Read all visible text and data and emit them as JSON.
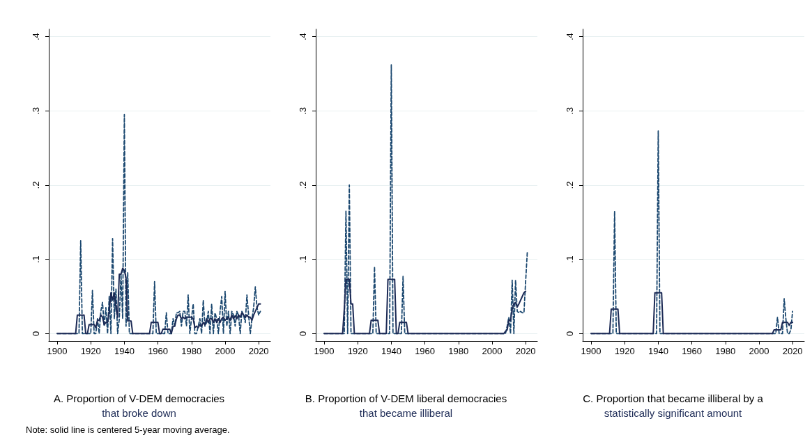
{
  "chart_data": [
    {
      "type": "line",
      "title": "A. Proportion of V-DEM democracies",
      "subtitle": "that broke down",
      "x": [
        1900,
        1901,
        1902,
        1903,
        1904,
        1905,
        1906,
        1907,
        1908,
        1909,
        1910,
        1911,
        1912,
        1913,
        1914,
        1915,
        1916,
        1917,
        1918,
        1919,
        1920,
        1921,
        1922,
        1923,
        1924,
        1925,
        1926,
        1927,
        1928,
        1929,
        1930,
        1931,
        1932,
        1933,
        1934,
        1935,
        1936,
        1937,
        1938,
        1939,
        1940,
        1941,
        1942,
        1943,
        1944,
        1945,
        1946,
        1947,
        1948,
        1949,
        1950,
        1951,
        1952,
        1953,
        1954,
        1955,
        1956,
        1957,
        1958,
        1959,
        1960,
        1961,
        1962,
        1963,
        1964,
        1965,
        1966,
        1967,
        1968,
        1969,
        1970,
        1971,
        1972,
        1973,
        1974,
        1975,
        1976,
        1977,
        1978,
        1979,
        1980,
        1981,
        1982,
        1983,
        1984,
        1985,
        1986,
        1987,
        1988,
        1989,
        1990,
        1991,
        1992,
        1993,
        1994,
        1995,
        1996,
        1997,
        1998,
        1999,
        2000,
        2001,
        2002,
        2003,
        2004,
        2005,
        2006,
        2007,
        2008,
        2009,
        2010,
        2011,
        2012,
        2013,
        2014,
        2015,
        2016,
        2017,
        2018,
        2019,
        2020,
        2021
      ],
      "series": [
        {
          "color": "#1a476f",
          "line_style": "dashed",
          "values": [
            0,
            0,
            0,
            0,
            0,
            0,
            0,
            0,
            0,
            0,
            0,
            0,
            0,
            0,
            0.125,
            0,
            0,
            0,
            0,
            0,
            0,
            0.058,
            0,
            0,
            0.02,
            0,
            0.03,
            0.042,
            0.01,
            0.035,
            0,
            0.05,
            0,
            0.128,
            0.02,
            0.06,
            0,
            0.02,
            0.08,
            0.02,
            0.295,
            0.01,
            0.082,
            0,
            0,
            0,
            0,
            0,
            0,
            0,
            0,
            0,
            0,
            0,
            0,
            0,
            0,
            0,
            0.07,
            0,
            0,
            0,
            0,
            0,
            0,
            0.028,
            0,
            0,
            0,
            0.02,
            0.01,
            0.028,
            0.028,
            0.03,
            0.01,
            0.03,
            0.03,
            0.01,
            0.052,
            0,
            0.02,
            0.04,
            0,
            0,
            0.01,
            0.02,
            0,
            0.045,
            0.01,
            0.015,
            0.03,
            0,
            0.04,
            0,
            0.028,
            0.02,
            0,
            0.03,
            0.05,
            0,
            0.057,
            0.01,
            0.03,
            0,
            0.03,
            0.025,
            0.01,
            0.03,
            0.025,
            0,
            0.03,
            0.025,
            0.015,
            0.052,
            0.025,
            0,
            0.02,
            0.035,
            0.063,
            0.035,
            0.025,
            0.03
          ]
        },
        {
          "color": "#1c2a55",
          "line_style": "solid",
          "values": [
            0,
            0,
            0,
            0,
            0,
            0,
            0,
            0,
            0,
            0,
            0,
            0,
            0.025,
            0.025,
            0.025,
            0.025,
            0.025,
            0,
            0,
            0.012,
            0.012,
            0.012,
            0.012,
            0.008,
            0.018,
            0.018,
            0.025,
            0.022,
            0.012,
            0.015,
            0.015,
            0.03,
            0.055,
            0.045,
            0.055,
            0.035,
            0.022,
            0.08,
            0.08,
            0.088,
            0.085,
            0.075,
            0.017,
            0.017,
            0.017,
            0,
            0,
            0,
            0,
            0,
            0,
            0,
            0,
            0,
            0,
            0,
            0.015,
            0.015,
            0.015,
            0.015,
            0.015,
            0,
            0,
            0.006,
            0.006,
            0.006,
            0.006,
            0.006,
            0,
            0.01,
            0.01,
            0.02,
            0.025,
            0.025,
            0.02,
            0.022,
            0.02,
            0.022,
            0.022,
            0.022,
            0.022,
            0.02,
            0.008,
            0.01,
            0.008,
            0.012,
            0.01,
            0.015,
            0.012,
            0.02,
            0.015,
            0.02,
            0.02,
            0.015,
            0.02,
            0.015,
            0.02,
            0.015,
            0.02,
            0.022,
            0.018,
            0.02,
            0.022,
            0.018,
            0.025,
            0.02,
            0.024,
            0.02,
            0.025,
            0.022,
            0.028,
            0.025,
            0.022,
            0.025,
            0.022,
            0.022,
            0.018,
            0.025,
            0.03,
            0.035,
            0.04,
            0.04
          ]
        }
      ],
      "xlim": [
        1895,
        2027
      ],
      "xticks": [
        1900,
        1920,
        1940,
        1960,
        1980,
        2000,
        2020
      ],
      "ylim": [
        -0.01,
        0.41
      ],
      "yticks": [
        {
          "value": 0,
          "label": "0"
        },
        {
          "value": 0.1,
          "label": ".1"
        },
        {
          "value": 0.2,
          "label": ".2"
        },
        {
          "value": 0.3,
          "label": ".3"
        },
        {
          "value": 0.4,
          "label": ".4"
        }
      ],
      "grid": "y",
      "annotations": [
        "Note: solid line is centered 5-year moving average."
      ]
    },
    {
      "type": "line",
      "title": "B. Proportion of V-DEM liberal democracies",
      "subtitle": "that became illiberal",
      "x": [
        1900,
        1901,
        1902,
        1903,
        1904,
        1905,
        1906,
        1907,
        1908,
        1909,
        1910,
        1911,
        1912,
        1913,
        1914,
        1915,
        1916,
        1917,
        1918,
        1919,
        1920,
        1921,
        1922,
        1923,
        1924,
        1925,
        1926,
        1927,
        1928,
        1929,
        1930,
        1931,
        1932,
        1933,
        1934,
        1935,
        1936,
        1937,
        1938,
        1939,
        1940,
        1941,
        1942,
        1943,
        1944,
        1945,
        1946,
        1947,
        1948,
        1949,
        1950,
        1951,
        1952,
        1953,
        1954,
        1955,
        1956,
        1957,
        1958,
        1959,
        1960,
        1961,
        1962,
        1963,
        1964,
        1965,
        1966,
        1967,
        1968,
        1969,
        1970,
        1971,
        1972,
        1973,
        1974,
        1975,
        1976,
        1977,
        1978,
        1979,
        1980,
        1981,
        1982,
        1983,
        1984,
        1985,
        1986,
        1987,
        1988,
        1989,
        1990,
        1991,
        1992,
        1993,
        1994,
        1995,
        1996,
        1997,
        1998,
        1999,
        2000,
        2001,
        2002,
        2003,
        2004,
        2005,
        2006,
        2007,
        2008,
        2009,
        2010,
        2011,
        2012,
        2013,
        2014,
        2015,
        2016,
        2017,
        2018,
        2019,
        2020,
        2021
      ],
      "series": [
        {
          "color": "#1a476f",
          "line_style": "dashed",
          "values": [
            0,
            0,
            0,
            0,
            0,
            0,
            0,
            0,
            0,
            0,
            0,
            0,
            0,
            0.165,
            0,
            0.2,
            0,
            0,
            0,
            0,
            0,
            0,
            0,
            0,
            0,
            0,
            0,
            0,
            0,
            0,
            0.09,
            0,
            0,
            0,
            0,
            0,
            0,
            0,
            0,
            0,
            0.362,
            0,
            0,
            0,
            0,
            0,
            0,
            0.077,
            0,
            0,
            0,
            0,
            0,
            0,
            0,
            0,
            0,
            0,
            0,
            0,
            0,
            0,
            0,
            0,
            0,
            0,
            0,
            0,
            0,
            0,
            0,
            0,
            0,
            0,
            0,
            0,
            0,
            0,
            0,
            0,
            0,
            0,
            0,
            0,
            0,
            0,
            0,
            0,
            0,
            0,
            0,
            0,
            0,
            0,
            0,
            0,
            0,
            0,
            0,
            0,
            0,
            0,
            0,
            0,
            0,
            0,
            0,
            0,
            0,
            0.01,
            0.022,
            0,
            0.072,
            0,
            0.072,
            0.03,
            0.028,
            0.03,
            0.028,
            0.028,
            0.07,
            0.11
          ]
        },
        {
          "color": "#1c2a55",
          "line_style": "solid",
          "values": [
            0,
            0,
            0,
            0,
            0,
            0,
            0,
            0,
            0,
            0,
            0,
            0,
            0.033,
            0.073,
            0.073,
            0.073,
            0.04,
            0.04,
            0,
            0,
            0,
            0,
            0,
            0,
            0,
            0,
            0,
            0,
            0.018,
            0.018,
            0.018,
            0.018,
            0.018,
            0,
            0,
            0,
            0,
            0,
            0.073,
            0.073,
            0.073,
            0.073,
            0.073,
            0,
            0,
            0.015,
            0.015,
            0.015,
            0.015,
            0.015,
            0,
            0,
            0,
            0,
            0,
            0,
            0,
            0,
            0,
            0,
            0,
            0,
            0,
            0,
            0,
            0,
            0,
            0,
            0,
            0,
            0,
            0,
            0,
            0,
            0,
            0,
            0,
            0,
            0,
            0,
            0,
            0,
            0,
            0,
            0,
            0,
            0,
            0,
            0,
            0,
            0,
            0,
            0,
            0,
            0,
            0,
            0,
            0,
            0,
            0,
            0,
            0,
            0,
            0,
            0,
            0,
            0,
            0,
            0.003,
            0.005,
            0.018,
            0.018,
            0.033,
            0.04,
            0.042,
            0.036,
            0.04,
            0.045,
            0.05,
            0.055,
            0.057,
            null
          ]
        }
      ],
      "xlim": [
        1895,
        2027
      ],
      "xticks": [
        1900,
        1920,
        1940,
        1960,
        1980,
        2000,
        2020
      ],
      "ylim": [
        -0.01,
        0.41
      ],
      "yticks": [
        {
          "value": 0,
          "label": "0"
        },
        {
          "value": 0.1,
          "label": ".1"
        },
        {
          "value": 0.2,
          "label": ".2"
        },
        {
          "value": 0.3,
          "label": ".3"
        },
        {
          "value": 0.4,
          "label": ".4"
        }
      ],
      "grid": "y"
    },
    {
      "type": "line",
      "title": "C. Proportion that became illiberal by a",
      "subtitle": "statistically significant amount",
      "x": [
        1900,
        1901,
        1902,
        1903,
        1904,
        1905,
        1906,
        1907,
        1908,
        1909,
        1910,
        1911,
        1912,
        1913,
        1914,
        1915,
        1916,
        1917,
        1918,
        1919,
        1920,
        1921,
        1922,
        1923,
        1924,
        1925,
        1926,
        1927,
        1928,
        1929,
        1930,
        1931,
        1932,
        1933,
        1934,
        1935,
        1936,
        1937,
        1938,
        1939,
        1940,
        1941,
        1942,
        1943,
        1944,
        1945,
        1946,
        1947,
        1948,
        1949,
        1950,
        1951,
        1952,
        1953,
        1954,
        1955,
        1956,
        1957,
        1958,
        1959,
        1960,
        1961,
        1962,
        1963,
        1964,
        1965,
        1966,
        1967,
        1968,
        1969,
        1970,
        1971,
        1972,
        1973,
        1974,
        1975,
        1976,
        1977,
        1978,
        1979,
        1980,
        1981,
        1982,
        1983,
        1984,
        1985,
        1986,
        1987,
        1988,
        1989,
        1990,
        1991,
        1992,
        1993,
        1994,
        1995,
        1996,
        1997,
        1998,
        1999,
        2000,
        2001,
        2002,
        2003,
        2004,
        2005,
        2006,
        2007,
        2008,
        2009,
        2010,
        2011,
        2012,
        2013,
        2014,
        2015,
        2016,
        2017,
        2018,
        2019,
        2020
      ],
      "series": [
        {
          "color": "#1a476f",
          "line_style": "dashed",
          "values": [
            0,
            0,
            0,
            0,
            0,
            0,
            0,
            0,
            0,
            0,
            0,
            0,
            0,
            0,
            0.165,
            0,
            0,
            0,
            0,
            0,
            0,
            0,
            0,
            0,
            0,
            0,
            0,
            0,
            0,
            0,
            0,
            0,
            0,
            0,
            0,
            0,
            0,
            0,
            0,
            0,
            0.273,
            0,
            0,
            0,
            0,
            0,
            0,
            0,
            0,
            0,
            0,
            0,
            0,
            0,
            0,
            0,
            0,
            0,
            0,
            0,
            0,
            0,
            0,
            0,
            0,
            0,
            0,
            0,
            0,
            0,
            0,
            0,
            0,
            0,
            0,
            0,
            0,
            0,
            0,
            0,
            0,
            0,
            0,
            0,
            0,
            0,
            0,
            0,
            0,
            0,
            0,
            0,
            0,
            0,
            0,
            0,
            0,
            0,
            0,
            0,
            0,
            0,
            0,
            0,
            0,
            0,
            0,
            0,
            0,
            0,
            0,
            0.022,
            0,
            0,
            0,
            0.047,
            0.02,
            0,
            0,
            0.005,
            0.03
          ]
        },
        {
          "color": "#1c2a55",
          "line_style": "solid",
          "values": [
            0,
            0,
            0,
            0,
            0,
            0,
            0,
            0,
            0,
            0,
            0,
            0,
            0.033,
            0.033,
            0.033,
            0.033,
            0.033,
            0,
            0,
            0,
            0,
            0,
            0,
            0,
            0,
            0,
            0,
            0,
            0,
            0,
            0,
            0,
            0,
            0,
            0,
            0,
            0,
            0,
            0.055,
            0.055,
            0.055,
            0.055,
            0.055,
            0,
            0,
            0,
            0,
            0,
            0,
            0,
            0,
            0,
            0,
            0,
            0,
            0,
            0,
            0,
            0,
            0,
            0,
            0,
            0,
            0,
            0,
            0,
            0,
            0,
            0,
            0,
            0,
            0,
            0,
            0,
            0,
            0,
            0,
            0,
            0,
            0,
            0,
            0,
            0,
            0,
            0,
            0,
            0,
            0,
            0,
            0,
            0,
            0,
            0,
            0,
            0,
            0,
            0,
            0,
            0,
            0,
            0,
            0,
            0,
            0,
            0,
            0,
            0,
            0,
            0,
            0.005,
            0.005,
            0.005,
            0.005,
            0.005,
            0.015,
            0.015,
            0.015,
            0.015,
            0.011,
            0.015,
            0.015
          ]
        }
      ],
      "xlim": [
        1895,
        2027
      ],
      "xticks": [
        1900,
        1920,
        1940,
        1960,
        1980,
        2000,
        2020
      ],
      "ylim": [
        -0.01,
        0.41
      ],
      "yticks": [
        {
          "value": 0,
          "label": "0"
        },
        {
          "value": 0.1,
          "label": ".1"
        },
        {
          "value": 0.2,
          "label": ".2"
        },
        {
          "value": 0.3,
          "label": ".3"
        },
        {
          "value": 0.4,
          "label": ".4"
        }
      ],
      "grid": "y"
    }
  ]
}
